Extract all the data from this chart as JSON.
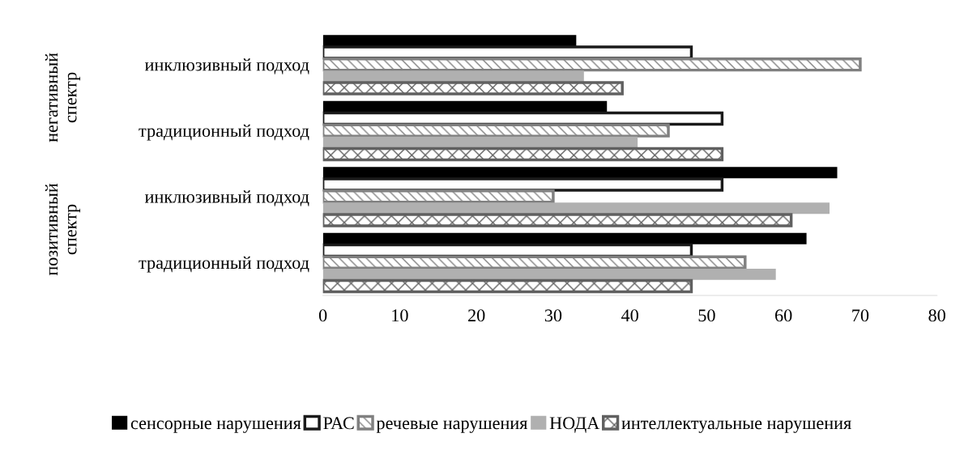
{
  "chart_data": {
    "type": "bar",
    "orientation": "horizontal",
    "categories": [
      "инклюзивный подход",
      "традиционный подход",
      "инклюзивный подход",
      "традиционный подход"
    ],
    "series": [
      {
        "name": "сенсорные нарушения",
        "color": "#000000",
        "values": [
          33,
          37,
          67,
          63
        ]
      },
      {
        "name": "РАС",
        "color": "#1a1a1a",
        "values": [
          48,
          52,
          52,
          48
        ]
      },
      {
        "name": "речевые нарушения",
        "color": "#808080",
        "values": [
          70,
          45,
          30,
          55
        ]
      },
      {
        "name": "НОДА",
        "color": "#b0b0b0",
        "values": [
          34,
          41,
          66,
          59
        ]
      },
      {
        "name": "интеллектуальные нарушения",
        "color": "#606060",
        "values": [
          39,
          52,
          61,
          48
        ]
      }
    ],
    "xlim": [
      0,
      80
    ],
    "xticks": [
      0,
      10,
      20,
      30,
      40,
      50,
      60,
      70,
      80
    ],
    "annotations": [
      "негативный спектр",
      "позитивный спектр"
    ],
    "grid": false,
    "legend": "bottom"
  }
}
